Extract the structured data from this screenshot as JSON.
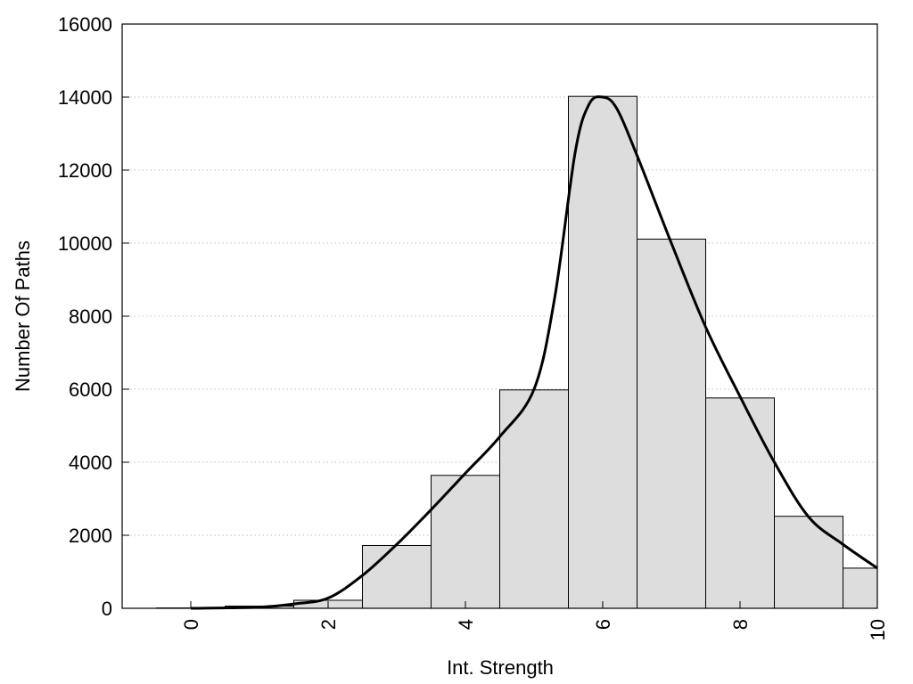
{
  "chart_data": {
    "type": "bar",
    "xlabel": "Int. Strength",
    "ylabel": "Number Of Paths",
    "xlim": [
      -1,
      10
    ],
    "ylim": [
      0,
      16000
    ],
    "x_ticks": [
      "0",
      "2",
      "4",
      "6",
      "8",
      "10"
    ],
    "y_ticks": [
      "0",
      "2000",
      "4000",
      "6000",
      "8000",
      "10000",
      "12000",
      "14000",
      "16000"
    ],
    "grid": "y-dotted",
    "bar_color": "#dddddd",
    "bins": [
      {
        "x": 0,
        "value": 10
      },
      {
        "x": 1,
        "value": 60
      },
      {
        "x": 2,
        "value": 220
      },
      {
        "x": 3,
        "value": 1720
      },
      {
        "x": 4,
        "value": 3640
      },
      {
        "x": 5,
        "value": 5980
      },
      {
        "x": 6,
        "value": 14020
      },
      {
        "x": 7,
        "value": 10110
      },
      {
        "x": 8,
        "value": 5760
      },
      {
        "x": 9,
        "value": 2520
      },
      {
        "x": 10,
        "value": 1100
      }
    ],
    "curve": {
      "x": [
        0,
        1,
        1.5,
        2,
        2.5,
        3,
        3.5,
        4,
        4.5,
        5,
        5.3,
        5.6,
        5.8,
        6,
        6.2,
        6.5,
        7,
        7.5,
        8,
        8.5,
        9,
        9.5,
        10
      ],
      "y": [
        0,
        30,
        120,
        280,
        900,
        1750,
        2700,
        3700,
        4700,
        6000,
        8500,
        12500,
        13800,
        14000,
        13700,
        12400,
        10000,
        7700,
        5800,
        4000,
        2500,
        1750,
        1100
      ]
    }
  }
}
